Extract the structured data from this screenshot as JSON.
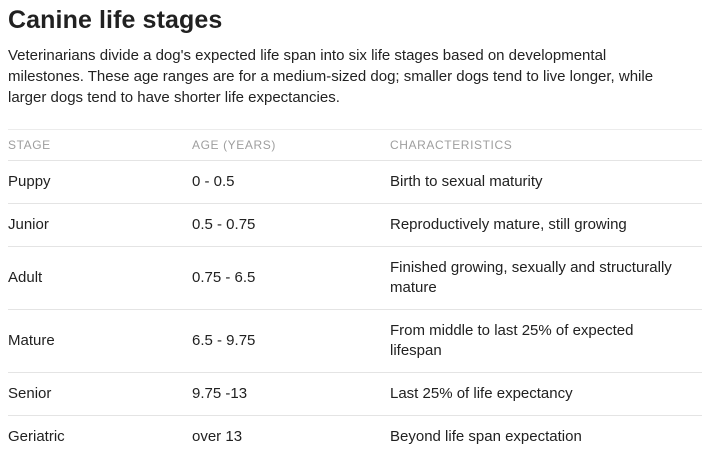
{
  "page": {
    "title": "Canine life stages",
    "intro": "Veterinarians divide a dog's expected life span into six life stages based on developmental\nmilestones. These age ranges are for a medium-sized dog; smaller dogs tend to live longer, while\nlarger dogs tend to have shorter life expectancies."
  },
  "table": {
    "columns": [
      "Stage",
      "Age (years)",
      "Characteristics"
    ],
    "rows": [
      {
        "stage": "Puppy",
        "age": "0 - 0.5",
        "characteristics": "Birth to sexual maturity"
      },
      {
        "stage": "Junior",
        "age": "0.5 - 0.75",
        "characteristics": "Reproductively mature, still growing"
      },
      {
        "stage": "Adult",
        "age": "0.75 - 6.5",
        "characteristics": "Finished growing, sexually and structurally\nmature"
      },
      {
        "stage": "Mature",
        "age": "6.5 - 9.75",
        "characteristics": "From middle to last 25% of expected\nlifespan"
      },
      {
        "stage": "Senior",
        "age": "9.75 -13",
        "characteristics": "Last 25% of life expectancy"
      },
      {
        "stage": "Geriatric",
        "age": "over 13",
        "characteristics": "Beyond life span expectation"
      }
    ]
  },
  "colors": {
    "background": "#ffffff",
    "text": "#212121",
    "column_header_text": "#9e9e9e",
    "divider": "#e4e4e4"
  }
}
